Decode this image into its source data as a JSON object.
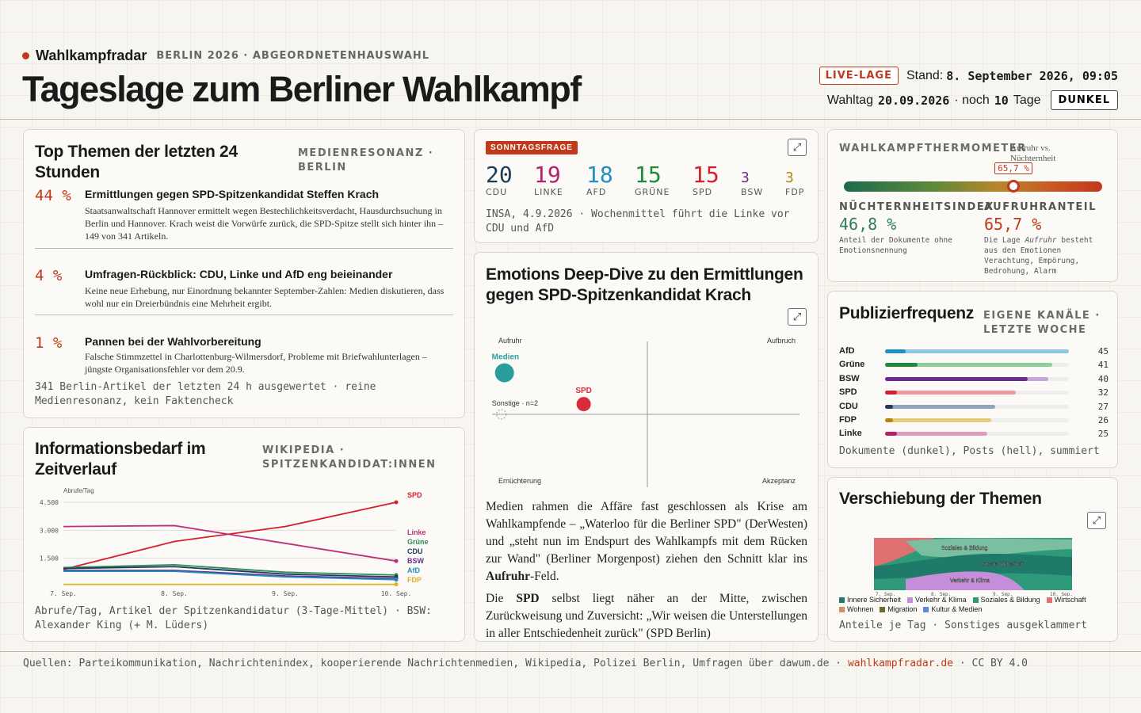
{
  "header": {
    "brand": "Wahlkampfradar",
    "context": "BERLIN 2026 · ABGEORDNETENHAUSWAHL",
    "title": "Tageslage zum Berliner Wahlkampf",
    "live_badge": "LIVE-LAGE",
    "stand_label": "Stand:",
    "stand_value": "8. September 2026, 09:05",
    "wahltag_label": "Wahltag",
    "wahltag_value": "20.09.2026",
    "countdown_prefix": "· noch",
    "countdown_value": "10",
    "countdown_suffix": "Tage",
    "theme_button": "DUNKEL"
  },
  "topics": {
    "title": "Top Themen der letzten 24 Stunden",
    "tag": "MEDIENRESONANZ · BERLIN",
    "items": [
      {
        "pct": "44 %",
        "headline": "Ermittlungen gegen SPD-Spitzenkandidat Steffen Krach",
        "text": "Staatsanwaltschaft Hannover ermittelt wegen Bestechlichkeitsverdacht, Hausdurchsuchung in Berlin und Hannover. Krach weist die Vorwürfe zurück, die SPD-Spitze stellt sich hinter ihn – 149 von 341 Artikeln."
      },
      {
        "pct": "4 %",
        "headline": "Umfragen-Rückblick: CDU, Linke und AfD eng beieinander",
        "text": "Keine neue Erhebung, nur Einordnung bekannter September-Zahlen: Medien diskutieren, dass wohl nur ein Dreierbündnis eine Mehrheit ergibt."
      },
      {
        "pct": "1 %",
        "headline": "Pannen bei der Wahlvorbereitung",
        "text": "Falsche Stimmzettel in Charlottenburg-Wilmersdorf, Probleme mit Briefwahlunterlagen – jüngste Organisationsfehler vor dem 20.9."
      }
    ],
    "footnote": "341 Berlin-Artikel der letzten 24 h ausgewertet · reine Medienresonanz, kein Faktencheck"
  },
  "poll": {
    "badge": "SONNTAGSFRAGE",
    "parties": [
      {
        "value": "20",
        "name": "CDU",
        "color": "#1d3b5a"
      },
      {
        "value": "19",
        "name": "LINKE",
        "color": "#b3206b"
      },
      {
        "value": "18",
        "name": "AFD",
        "color": "#1f8fc4"
      },
      {
        "value": "15",
        "name": "GRÜNE",
        "color": "#1f8a3a"
      },
      {
        "value": "15",
        "name": "SPD",
        "color": "#d4202a"
      },
      {
        "value": "3",
        "name": "BSW",
        "color": "#6a2c8a"
      },
      {
        "value": "3",
        "name": "FDP",
        "color": "#b08a10"
      }
    ],
    "source": "INSA, 4.9.2026 · Wochenmittel führt die Linke vor CDU und AfD"
  },
  "thermo": {
    "tag": "WAHLKAMPFTHERMOMETER",
    "sub": "Aufruhr vs. Nüchternheit",
    "marker_label": "65,7 %",
    "marker_value": 65.7,
    "left_label": "NÜCHTERNHEITSINDEX",
    "left_value": "46,8 %",
    "left_desc": "Anteil der Dokumente ohne Emotionsnennung",
    "right_label": "AUFRUHRANTEIL",
    "right_value": "65,7 %",
    "right_desc_1": "Die Lage ",
    "right_desc_em": "Aufruhr",
    "right_desc_2": " besteht aus den Emotionen Verachtung, Empörung, Bedrohung, Alarm"
  },
  "emotions": {
    "title": "Emotions Deep-Dive zu den Ermittlungen gegen SPD-Spitzenkandidat Krach",
    "quadrants": {
      "tl": "Aufruhr",
      "tr": "Aufbruch",
      "bl": "Ernüchterung",
      "br": "Akzeptanz"
    },
    "points": [
      {
        "label": "Medien",
        "color": "#2a9d9d"
      },
      {
        "label": "SPD",
        "color": "#d92b3a"
      },
      {
        "label": "Sonstige · n=2",
        "color": "#bbbbbb"
      }
    ],
    "p1_a": "Medien rahmen die Affäre fast geschlossen als Krise am Wahlkampfende – „Waterloo für die Berliner SPD\" (DerWesten) und „steht nun im Endspurt des Wahlkampfs mit dem Rücken zur Wand\" (Berliner Morgenpost) ziehen den Schnitt klar ins ",
    "p1_b": "Aufruhr",
    "p1_c": "-Feld.",
    "p2_a": "Die ",
    "p2_b": "SPD",
    "p2_c": " selbst liegt näher an der Mitte, zwischen Zurückweisung und Zuversicht: „Wir weisen die Unterstellungen in aller Entschiedenheit zurück\" (SPD Berlin)"
  },
  "wiki": {
    "title": "Informationsbedarf im Zeitverlauf",
    "tag": "WIKIPEDIA · SPITZENKANDIDAT:INNEN",
    "footnote": "Abrufe/Tag, Artikel der Spitzenkandidatur (3-Tage-Mittel) · BSW: Alexander King (+ M. Lüders)"
  },
  "pubfreq": {
    "title": "Publizierfrequenz",
    "tag": "EIGENE KANÄLE · LETZTE WOCHE",
    "rows": [
      {
        "name": "AfD",
        "total": 45,
        "docs": 5,
        "color": "#1f8fc4",
        "light": "#8cc8e0"
      },
      {
        "name": "Grüne",
        "total": 41,
        "docs": 8,
        "color": "#1f8a3a",
        "light": "#8ccf98"
      },
      {
        "name": "BSW",
        "total": 40,
        "docs": 35,
        "color": "#6a2c8a",
        "light": "#c4a6d8"
      },
      {
        "name": "SPD",
        "total": 32,
        "docs": 3,
        "color": "#d4202a",
        "light": "#ef98a0"
      },
      {
        "name": "CDU",
        "total": 27,
        "docs": 2,
        "color": "#1d3b5a",
        "light": "#8fa3bd"
      },
      {
        "name": "FDP",
        "total": 26,
        "docs": 2,
        "color": "#b08a10",
        "light": "#e3cc7a"
      },
      {
        "name": "Linke",
        "total": 25,
        "docs": 3,
        "color": "#b3206b",
        "light": "#e09cc0"
      }
    ],
    "scale_max": 45,
    "footnote": "Dokumente (dunkel), Posts (hell), summiert"
  },
  "shift": {
    "title": "Verschiebung der Themen",
    "labels": {
      "soziales": "Soziales & Bildung",
      "innere": "Innere Sicherheit",
      "verkehr": "Verkehr & Klima"
    },
    "legend": [
      {
        "label": "Innere Sicherheit",
        "color": "#1f7a6a"
      },
      {
        "label": "Verkehr & Klima",
        "color": "#c48fd8"
      },
      {
        "label": "Soziales & Bildung",
        "color": "#2f9a7a"
      },
      {
        "label": "Wirtschaft",
        "color": "#e07070"
      },
      {
        "label": "Wohnen",
        "color": "#d09060"
      },
      {
        "label": "Migration",
        "color": "#6a6a2a"
      },
      {
        "label": "Kultur & Medien",
        "color": "#5a8ad8"
      }
    ],
    "footnote": "Anteile je Tag · Sonstiges ausgeklammert"
  },
  "footer": {
    "sources": "Quellen: Parteikommunikation, Nachrichtenindex, kooperierende Nachrichtenmedien, Wikipedia, Polizei Berlin, Umfragen über dawum.de ·",
    "link": "wahlkampfradar.de",
    "license": "· CC BY 4.0"
  },
  "chart_data": [
    {
      "type": "line",
      "ylabel": "Abrufe/Tag",
      "x": [
        "7. Sep.",
        "8. Sep.",
        "9. Sep.",
        "10. Sep."
      ],
      "ylim": [
        0,
        4500
      ],
      "yticks": [
        "4.500",
        "3.000",
        "1.500"
      ],
      "series": [
        {
          "name": "SPD",
          "color": "#d4202a",
          "values": [
            900,
            2400,
            3200,
            4500
          ]
        },
        {
          "name": "Linke",
          "color": "#c0307a",
          "values": [
            3200,
            3250,
            2300,
            1350
          ]
        },
        {
          "name": "Grüne",
          "color": "#2e8b57",
          "values": [
            1000,
            1150,
            750,
            600
          ]
        },
        {
          "name": "CDU",
          "color": "#1d3b5a",
          "values": [
            950,
            1050,
            650,
            500
          ]
        },
        {
          "name": "BSW",
          "color": "#6a2c8a",
          "values": [
            850,
            850,
            550,
            400
          ]
        },
        {
          "name": "AfD",
          "color": "#1f8fc4",
          "values": [
            800,
            800,
            500,
            350
          ]
        },
        {
          "name": "FDP",
          "color": "#e0b020",
          "values": [
            100,
            100,
            100,
            100
          ]
        }
      ]
    },
    {
      "type": "scatter",
      "xlim": [
        -1,
        1
      ],
      "ylim": [
        -1,
        1
      ],
      "series": [
        {
          "name": "Medien",
          "x": [
            -0.92
          ],
          "y": [
            0.57
          ]
        },
        {
          "name": "SPD",
          "x": [
            -0.41
          ],
          "y": [
            0.14
          ]
        },
        {
          "name": "Sonstige · n=2",
          "x": [
            -0.94
          ],
          "y": [
            0.0
          ]
        }
      ]
    }
  ]
}
